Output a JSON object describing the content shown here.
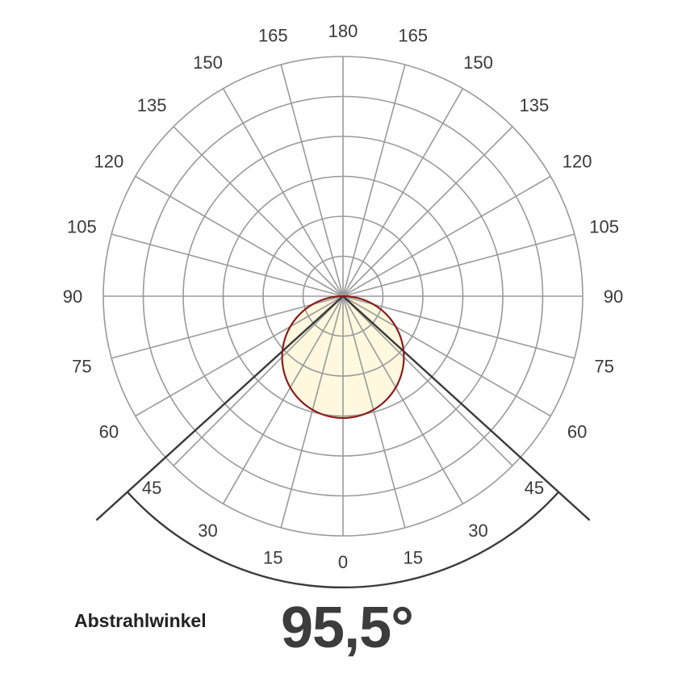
{
  "chart_data": {
    "type": "polar",
    "title": "",
    "angle_ticks_left": [
      "0",
      "15",
      "30",
      "45",
      "60",
      "75",
      "90",
      "105",
      "120",
      "135",
      "150",
      "165",
      "180"
    ],
    "angle_ticks_right": [
      "15",
      "30",
      "45",
      "60",
      "75",
      "90",
      "105",
      "120",
      "135",
      "150",
      "165"
    ],
    "ring_count": 6,
    "spoke_step_deg": 15,
    "beam_angle_deg": 95.5,
    "intensity_curve": {
      "shape": "cosine",
      "max_radius_fraction": 0.508
    },
    "colors": {
      "grid": "#9a9a9a",
      "curve_stroke": "#8b1a1a",
      "curve_fill": "#fdf8de",
      "beam_lines": "#3a3a3a",
      "tick_text": "#3a3a3a"
    }
  },
  "caption": {
    "label": "Abstrahlwinkel",
    "value": "95,5°"
  }
}
